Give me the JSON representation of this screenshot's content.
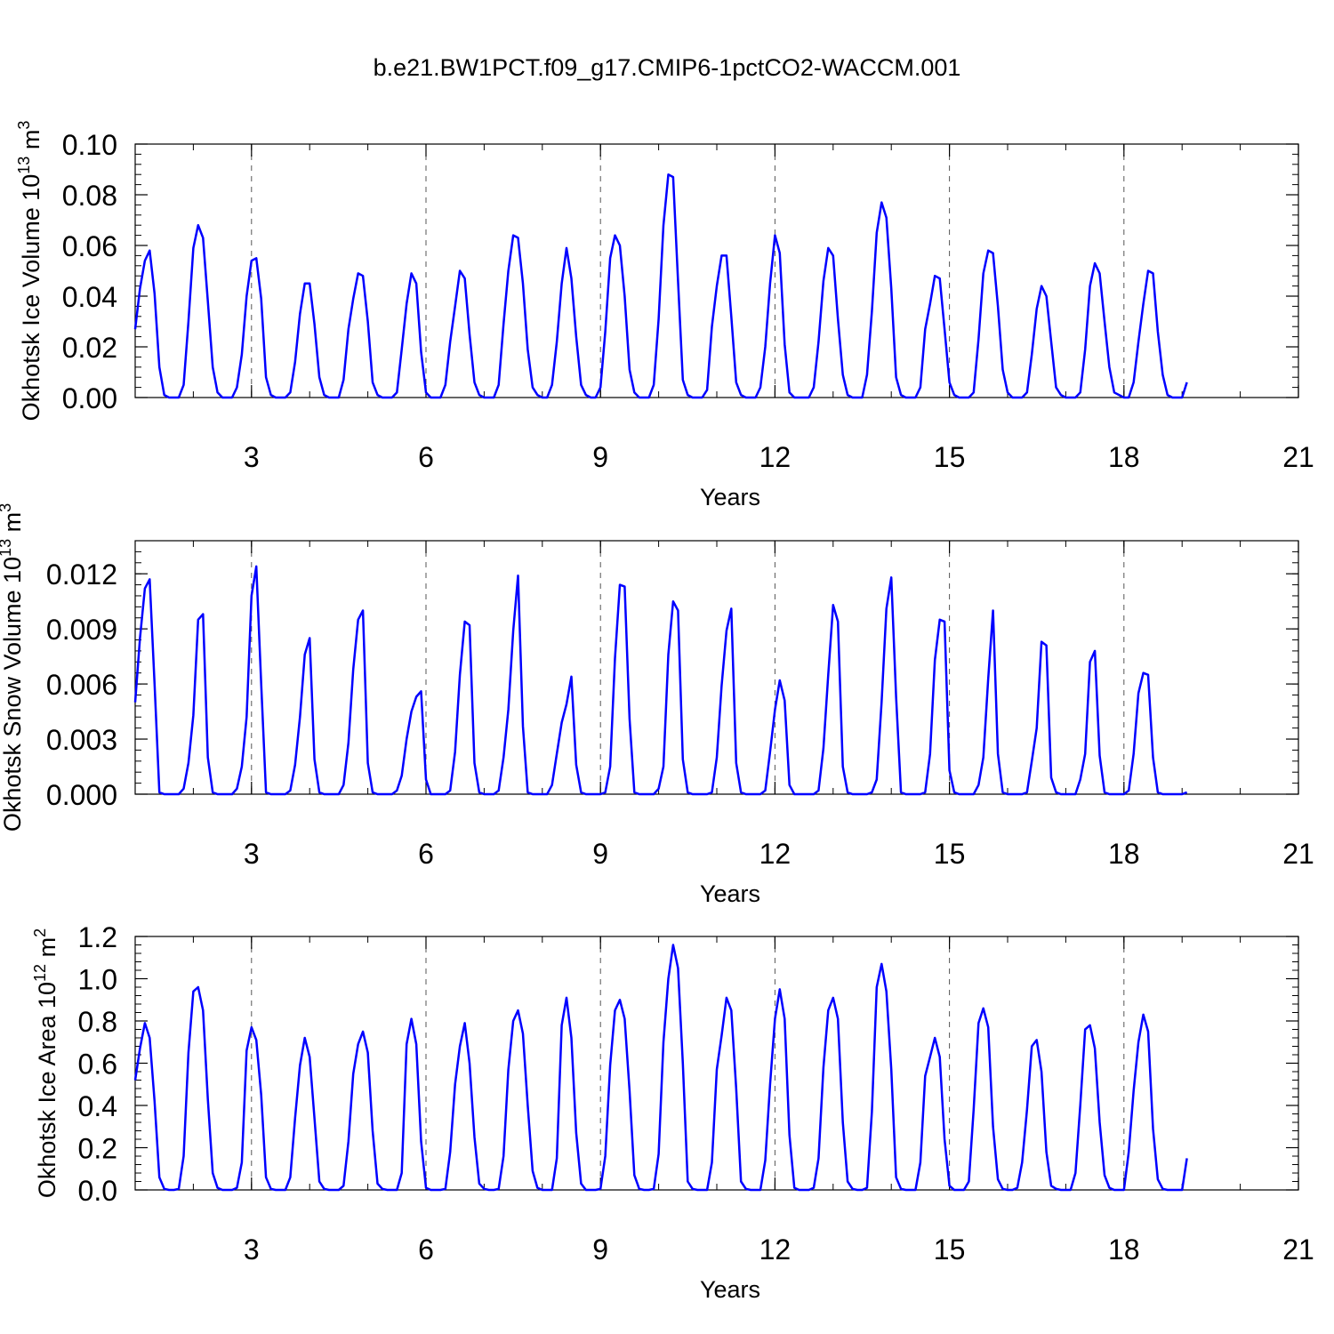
{
  "title": "b.e21.BW1PCT.f09_g17.CMIP6-1pctCO2-WACCM.001",
  "line_color": "#0000ff",
  "chart_data": [
    {
      "type": "line",
      "title": "",
      "xlabel": "Years",
      "ylabel": "Okhotsk Ice Volume 10",
      "ylabel_exp": "13",
      "ylabel_unit": " m",
      "ylabel_unit_exp": "3",
      "xlim": [
        1,
        21
      ],
      "ylim": [
        0,
        0.1
      ],
      "x_ticks": [
        "3",
        "6",
        "9",
        "12",
        "15",
        "18",
        "21"
      ],
      "y_ticks": [
        "0.00",
        "0.02",
        "0.04",
        "0.06",
        "0.08",
        "0.10"
      ],
      "grid": "dashed vertical lines at years 3, 6, 9, 12, 15, 18",
      "series": [
        {
          "x_start": 1,
          "x_step_years": 0.0833333,
          "values": [
            0.027,
            0.043,
            0.054,
            0.058,
            0.041,
            0.012,
            0.001,
            0,
            0,
            0,
            0.005,
            0.03,
            0.059,
            0.068,
            0.063,
            0.038,
            0.012,
            0.002,
            0,
            0,
            0,
            0.004,
            0.017,
            0.04,
            0.054,
            0.055,
            0.039,
            0.008,
            0.001,
            0,
            0,
            0,
            0.002,
            0.014,
            0.033,
            0.045,
            0.045,
            0.029,
            0.008,
            0.001,
            0,
            0,
            0,
            0.007,
            0.027,
            0.039,
            0.049,
            0.048,
            0.03,
            0.006,
            0.001,
            0,
            0,
            0,
            0.002,
            0.019,
            0.037,
            0.049,
            0.045,
            0.018,
            0.002,
            0,
            0,
            0,
            0.005,
            0.022,
            0.036,
            0.05,
            0.047,
            0.025,
            0.006,
            0.001,
            0,
            0,
            0,
            0.005,
            0.029,
            0.05,
            0.064,
            0.063,
            0.045,
            0.019,
            0.004,
            0.001,
            0,
            0,
            0.005,
            0.022,
            0.045,
            0.059,
            0.047,
            0.024,
            0.005,
            0.001,
            0,
            0,
            0.004,
            0.026,
            0.055,
            0.064,
            0.06,
            0.04,
            0.011,
            0.002,
            0,
            0,
            0,
            0.005,
            0.031,
            0.068,
            0.088,
            0.087,
            0.046,
            0.007,
            0.001,
            0,
            0,
            0,
            0.003,
            0.028,
            0.044,
            0.056,
            0.056,
            0.032,
            0.006,
            0.001,
            0,
            0,
            0,
            0.004,
            0.02,
            0.045,
            0.064,
            0.057,
            0.021,
            0.002,
            0,
            0,
            0,
            0,
            0.004,
            0.022,
            0.046,
            0.059,
            0.056,
            0.031,
            0.009,
            0.001,
            0,
            0,
            0,
            0.009,
            0.034,
            0.065,
            0.077,
            0.071,
            0.043,
            0.008,
            0.001,
            0,
            0,
            0,
            0.004,
            0.027,
            0.037,
            0.048,
            0.047,
            0.027,
            0.006,
            0.001,
            0,
            0,
            0,
            0.002,
            0.023,
            0.049,
            0.058,
            0.057,
            0.036,
            0.011,
            0.002,
            0,
            0,
            0,
            0.002,
            0.017,
            0.035,
            0.044,
            0.04,
            0.022,
            0.004,
            0.001,
            0,
            0,
            0,
            0.002,
            0.019,
            0.044,
            0.053,
            0.049,
            0.03,
            0.012,
            0.002,
            0.001,
            0,
            0,
            0.006,
            0.022,
            0.037,
            0.05,
            0.049,
            0.026,
            0.009,
            0.001,
            0,
            0,
            0,
            0.006
          ]
        }
      ]
    },
    {
      "type": "line",
      "title": "",
      "xlabel": "Years",
      "ylabel": "Okhotsk Snow Volume 10",
      "ylabel_exp": "13",
      "ylabel_unit": " m",
      "ylabel_unit_exp": "3",
      "xlim": [
        1,
        21
      ],
      "ylim": [
        0,
        0.0138
      ],
      "x_ticks": [
        "3",
        "6",
        "9",
        "12",
        "15",
        "18",
        "21"
      ],
      "y_ticks": [
        "0.000",
        "0.003",
        "0.006",
        "0.009",
        "0.012"
      ],
      "grid": "dashed vertical lines at years 3, 6, 9, 12, 15, 18",
      "series": [
        {
          "x_start": 1,
          "x_step_years": 0.0833333,
          "values": [
            0.005,
            0.0085,
            0.0112,
            0.0117,
            0.006,
            0.0001,
            0,
            0,
            0,
            0,
            0.0003,
            0.0017,
            0.0043,
            0.0095,
            0.0098,
            0.002,
            0.0001,
            0,
            0,
            0,
            0,
            0.0003,
            0.0015,
            0.0042,
            0.0108,
            0.0124,
            0.006,
            0.0001,
            0,
            0,
            0,
            0,
            0.0002,
            0.0016,
            0.0042,
            0.0076,
            0.0085,
            0.0019,
            0.0001,
            0,
            0,
            0,
            0,
            0.0005,
            0.0028,
            0.0068,
            0.0095,
            0.01,
            0.0017,
            0.0001,
            0,
            0,
            0,
            0,
            0.0002,
            0.001,
            0.003,
            0.0045,
            0.0053,
            0.0056,
            0.0008,
            0,
            0,
            0,
            0,
            0.0002,
            0.0023,
            0.0065,
            0.0094,
            0.0092,
            0.0017,
            0.0001,
            0,
            0,
            0,
            0.0002,
            0.002,
            0.0046,
            0.0089,
            0.0119,
            0.0037,
            0.0001,
            0,
            0,
            0,
            0,
            0.0005,
            0.0022,
            0.0039,
            0.0049,
            0.0064,
            0.0016,
            0.0001,
            0,
            0,
            0,
            0,
            0.0001,
            0.0015,
            0.0074,
            0.0114,
            0.0113,
            0.0041,
            0.0001,
            0,
            0,
            0,
            0,
            0.0003,
            0.0015,
            0.0076,
            0.0105,
            0.01,
            0.0019,
            0.0001,
            0,
            0,
            0,
            0,
            0.0001,
            0.002,
            0.0059,
            0.0089,
            0.0101,
            0.0017,
            0.0001,
            0,
            0,
            0,
            0,
            0.0002,
            0.0023,
            0.0046,
            0.0062,
            0.0051,
            0.0005,
            0,
            0,
            0,
            0,
            0,
            0.0002,
            0.0025,
            0.0065,
            0.0103,
            0.0094,
            0.0015,
            0.0001,
            0,
            0,
            0,
            0,
            0.0001,
            0.0008,
            0.005,
            0.0101,
            0.0118,
            0.0053,
            0.0001,
            0,
            0,
            0,
            0,
            0.0001,
            0.0022,
            0.0073,
            0.0095,
            0.0094,
            0.0013,
            0.0001,
            0,
            0,
            0,
            0,
            0.0005,
            0.002,
            0.0063,
            0.01,
            0.0022,
            0.0001,
            0,
            0,
            0,
            0,
            0.0001,
            0.0018,
            0.0036,
            0.0083,
            0.0081,
            0.0009,
            0.0001,
            0,
            0,
            0,
            0,
            0.0008,
            0.0022,
            0.0072,
            0.0078,
            0.0021,
            0.0001,
            0,
            0,
            0,
            0,
            0.0002,
            0.0022,
            0.0055,
            0.0066,
            0.0065,
            0.002,
            0.0001,
            0,
            0,
            0,
            0,
            0,
            0.0001
          ]
        }
      ]
    },
    {
      "type": "line",
      "title": "",
      "xlabel": "Years",
      "ylabel": "Okhotsk Ice Area 10",
      "ylabel_exp": "12",
      "ylabel_unit": " m",
      "ylabel_unit_exp": "2",
      "xlim": [
        1,
        21
      ],
      "ylim": [
        0,
        1.2
      ],
      "x_ticks": [
        "3",
        "6",
        "9",
        "12",
        "15",
        "18",
        "21"
      ],
      "y_ticks": [
        "0.0",
        "0.2",
        "0.4",
        "0.6",
        "0.8",
        "1.0",
        "1.2"
      ],
      "grid": "dashed vertical lines at years 3, 6, 9, 12, 15, 18",
      "series": [
        {
          "x_start": 1,
          "x_step_years": 0.0833333,
          "values": [
            0.52,
            0.67,
            0.79,
            0.72,
            0.42,
            0.06,
            0.005,
            0,
            0,
            0.005,
            0.16,
            0.65,
            0.94,
            0.96,
            0.85,
            0.43,
            0.08,
            0.01,
            0,
            0,
            0,
            0.01,
            0.13,
            0.66,
            0.77,
            0.71,
            0.45,
            0.06,
            0.005,
            0,
            0,
            0,
            0.06,
            0.34,
            0.59,
            0.72,
            0.63,
            0.34,
            0.04,
            0.005,
            0,
            0,
            0,
            0.02,
            0.23,
            0.55,
            0.69,
            0.75,
            0.65,
            0.28,
            0.03,
            0.005,
            0,
            0,
            0,
            0.08,
            0.69,
            0.81,
            0.69,
            0.23,
            0.01,
            0,
            0,
            0,
            0.005,
            0.18,
            0.5,
            0.68,
            0.79,
            0.6,
            0.25,
            0.03,
            0.005,
            0,
            0,
            0.005,
            0.16,
            0.57,
            0.8,
            0.85,
            0.74,
            0.4,
            0.09,
            0.01,
            0,
            0,
            0,
            0.15,
            0.78,
            0.91,
            0.72,
            0.27,
            0.03,
            0,
            0,
            0,
            0.005,
            0.16,
            0.59,
            0.85,
            0.9,
            0.81,
            0.47,
            0.07,
            0.005,
            0,
            0,
            0.005,
            0.17,
            0.7,
            1.0,
            1.16,
            1.05,
            0.6,
            0.04,
            0.005,
            0,
            0,
            0,
            0.13,
            0.57,
            0.73,
            0.91,
            0.85,
            0.48,
            0.04,
            0.005,
            0,
            0,
            0,
            0.14,
            0.5,
            0.81,
            0.95,
            0.81,
            0.26,
            0.01,
            0,
            0,
            0,
            0.01,
            0.15,
            0.58,
            0.85,
            0.91,
            0.81,
            0.32,
            0.04,
            0.005,
            0,
            0,
            0.01,
            0.37,
            0.96,
            1.07,
            0.94,
            0.57,
            0.06,
            0.005,
            0,
            0,
            0,
            0.13,
            0.54,
            0.63,
            0.72,
            0.63,
            0.24,
            0.02,
            0,
            0,
            0,
            0.04,
            0.38,
            0.79,
            0.86,
            0.77,
            0.3,
            0.05,
            0.005,
            0,
            0,
            0.01,
            0.13,
            0.38,
            0.68,
            0.71,
            0.56,
            0.18,
            0.02,
            0.005,
            0,
            0,
            0,
            0.08,
            0.4,
            0.76,
            0.78,
            0.67,
            0.32,
            0.07,
            0.01,
            0,
            0,
            0,
            0.18,
            0.47,
            0.7,
            0.83,
            0.75,
            0.29,
            0.05,
            0.005,
            0,
            0,
            0,
            0,
            0.15
          ]
        }
      ]
    }
  ]
}
